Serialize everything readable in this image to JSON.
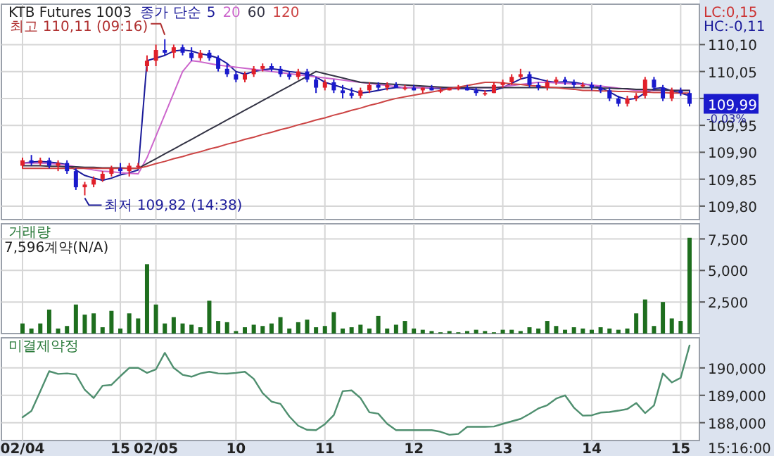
{
  "chart_data": [
    {
      "type": "candlestick",
      "title": "KTB Futures 1003",
      "legend_title": "종가 단순",
      "legend": "top left",
      "grid": true,
      "tick_labels": "y",
      "ylim": [
        109.775,
        110.175
      ],
      "yticks": [
        {
          "value": 109.8,
          "label": "109,80"
        },
        {
          "value": 109.85,
          "label": "109,85"
        },
        {
          "value": 109.9,
          "label": "109,90"
        },
        {
          "value": 109.95,
          "label": "109,95"
        },
        {
          "value": 110,
          "label": null
        },
        {
          "value": 110.05,
          "label": "110,05"
        },
        {
          "value": 110.1,
          "label": "110,10"
        }
      ],
      "categories": [
        null,
        null,
        null,
        null,
        null,
        null,
        null,
        null,
        null,
        null,
        null,
        null,
        null,
        null,
        null,
        null,
        null,
        null,
        null,
        null,
        null,
        null,
        null,
        null,
        null,
        null,
        null,
        null,
        null,
        null,
        null,
        null,
        null,
        null,
        null,
        null,
        null,
        null,
        null,
        null,
        null,
        null,
        null,
        null,
        null,
        null,
        null,
        null,
        null,
        null,
        null,
        null,
        null,
        null,
        null,
        null,
        null,
        null,
        null,
        null,
        null,
        null,
        null,
        null,
        null,
        null,
        null,
        null,
        null,
        null,
        null,
        null,
        null,
        null,
        null,
        null
      ],
      "ohlc": [
        [
          109.875,
          109.89,
          109.87,
          109.885
        ],
        [
          109.885,
          109.895,
          109.875,
          109.88
        ],
        [
          109.88,
          109.89,
          109.875,
          109.885
        ],
        [
          109.885,
          109.89,
          109.87,
          109.875
        ],
        [
          109.875,
          109.885,
          109.865,
          109.88
        ],
        [
          109.88,
          109.885,
          109.86,
          109.865
        ],
        [
          109.865,
          109.87,
          109.83,
          109.835
        ],
        [
          109.835,
          109.845,
          109.82,
          109.84
        ],
        [
          109.84,
          109.855,
          109.835,
          109.85
        ],
        [
          109.85,
          109.865,
          109.845,
          109.86
        ],
        [
          109.86,
          109.875,
          109.855,
          109.87
        ],
        [
          109.87,
          109.88,
          109.86,
          109.865
        ],
        [
          109.865,
          109.88,
          109.855,
          109.875
        ],
        [
          109.875,
          109.88,
          109.87,
          109.875
        ],
        [
          110.06,
          110.08,
          110.05,
          110.07
        ],
        [
          110.07,
          110.1,
          110.06,
          110.09
        ],
        [
          110.09,
          110.11,
          110.08,
          110.085
        ],
        [
          110.085,
          110.1,
          110.075,
          110.095
        ],
        [
          110.095,
          110.1,
          110.08,
          110.085
        ],
        [
          110.085,
          110.095,
          110.07,
          110.075
        ],
        [
          110.075,
          110.09,
          110.07,
          110.085
        ],
        [
          110.085,
          110.09,
          110.07,
          110.075
        ],
        [
          110.075,
          110.08,
          110.05,
          110.055
        ],
        [
          110.055,
          110.065,
          110.04,
          110.045
        ],
        [
          110.045,
          110.05,
          110.03,
          110.035
        ],
        [
          110.035,
          110.05,
          110.03,
          110.045
        ],
        [
          110.045,
          110.06,
          110.04,
          110.055
        ],
        [
          110.055,
          110.065,
          110.05,
          110.06
        ],
        [
          110.06,
          110.065,
          110.05,
          110.055
        ],
        [
          110.055,
          110.06,
          110.04,
          110.045
        ],
        [
          110.045,
          110.05,
          110.035,
          110.04
        ],
        [
          110.04,
          110.055,
          110.035,
          110.05
        ],
        [
          110.05,
          110.055,
          110.03,
          110.035
        ],
        [
          110.035,
          110.04,
          110.01,
          110.02
        ],
        [
          110.02,
          110.035,
          110.015,
          110.03
        ],
        [
          110.03,
          110.035,
          110.01,
          110.015
        ],
        [
          110.015,
          110.025,
          110.0,
          110.01
        ],
        [
          110.01,
          110.02,
          110.0,
          110.005
        ],
        [
          110.005,
          110.02,
          110.0,
          110.015
        ],
        [
          110.015,
          110.03,
          110.01,
          110.025
        ],
        [
          110.025,
          110.03,
          110.015,
          110.02
        ],
        [
          110.02,
          110.03,
          110.015,
          110.025
        ],
        [
          110.025,
          110.03,
          110.02,
          110.02
        ],
        [
          110.02,
          110.025,
          110.015,
          110.02
        ],
        [
          110.02,
          110.025,
          110.015,
          110.015
        ],
        [
          110.015,
          110.02,
          110.01,
          110.02
        ],
        [
          110.02,
          110.025,
          110.015,
          110.015
        ],
        [
          110.015,
          110.02,
          110.01,
          110.015
        ],
        [
          110.015,
          110.02,
          110.015,
          110.02
        ],
        [
          110.02,
          110.025,
          110.015,
          110.02
        ],
        [
          110.02,
          110.025,
          110.015,
          110.015
        ],
        [
          110.015,
          110.02,
          110.005,
          110.01
        ],
        [
          110.01,
          110.015,
          110.005,
          110.01
        ],
        [
          110.01,
          110.03,
          110.01,
          110.025
        ],
        [
          110.025,
          110.035,
          110.02,
          110.03
        ],
        [
          110.03,
          110.045,
          110.025,
          110.04
        ],
        [
          110.04,
          110.055,
          110.035,
          110.045
        ],
        [
          110.045,
          110.05,
          110.02,
          110.025
        ],
        [
          110.025,
          110.03,
          110.015,
          110.02
        ],
        [
          110.02,
          110.035,
          110.015,
          110.03
        ],
        [
          110.03,
          110.04,
          110.025,
          110.035
        ],
        [
          110.035,
          110.04,
          110.025,
          110.03
        ],
        [
          110.03,
          110.035,
          110.02,
          110.025
        ],
        [
          110.025,
          110.03,
          110.02,
          110.025
        ],
        [
          110.025,
          110.03,
          110.015,
          110.02
        ],
        [
          110.02,
          110.025,
          110.01,
          110.015
        ],
        [
          110.015,
          110.02,
          109.995,
          110.0
        ],
        [
          110.0,
          110.005,
          109.985,
          109.99
        ],
        [
          109.99,
          110.005,
          109.985,
          110.0
        ],
        [
          110.0,
          110.01,
          109.995,
          110.005
        ],
        [
          110.005,
          110.04,
          110.0,
          110.035
        ],
        [
          110.035,
          110.04,
          110.015,
          110.02
        ],
        [
          110.02,
          110.025,
          109.995,
          110.0
        ],
        [
          110.0,
          110.02,
          109.995,
          110.015
        ],
        [
          110.015,
          110.02,
          110.005,
          110.01
        ],
        [
          110.01,
          110.015,
          109.985,
          109.99
        ]
      ],
      "series": [
        {
          "name": "5",
          "type": "line",
          "color": "#1a1a99",
          "values": [
            109.88,
            109.882,
            109.883,
            109.882,
            109.88,
            109.877,
            109.867,
            109.857,
            109.852,
            109.848,
            109.852,
            109.858,
            109.862,
            109.867,
            110.07,
            110.075,
            110.08,
            110.088,
            110.09,
            110.088,
            110.083,
            110.08,
            110.075,
            110.065,
            110.05,
            110.045,
            110.05,
            110.053,
            110.055,
            110.053,
            110.05,
            110.048,
            110.045,
            110.04,
            110.03,
            110.025,
            110.02,
            110.015,
            110.01,
            110.012,
            110.015,
            110.018,
            110.02,
            110.02,
            110.02,
            110.02,
            110.019,
            110.018,
            110.018,
            110.018,
            110.018,
            110.016,
            110.014,
            110.015,
            110.02,
            110.028,
            110.036,
            110.04,
            110.036,
            110.032,
            110.03,
            110.031,
            110.03,
            110.027,
            110.025,
            110.02,
            110.012,
            110.003,
            109.998,
            110.0,
            110.01,
            110.018,
            110.02,
            110.014,
            110.01,
            110.005
          ]
        },
        {
          "name": "20",
          "type": "line",
          "color": "#cc66cc",
          "values": [
            109.88,
            109.88,
            109.88,
            109.879,
            109.878,
            109.876,
            109.873,
            109.87,
            109.867,
            109.865,
            109.864,
            109.862,
            109.861,
            109.86,
            109.89,
            109.93,
            109.97,
            110.01,
            110.05,
            110.07,
            110.068,
            110.065,
            110.062,
            110.06,
            110.058,
            110.056,
            110.054,
            110.052,
            110.05,
            110.048,
            110.046,
            110.044,
            110.042,
            110.04,
            110.038,
            110.036,
            110.034,
            110.032,
            110.03,
            110.028,
            110.026,
            110.024,
            110.022,
            110.02,
            110.02,
            110.02,
            110.02,
            110.02,
            110.02,
            110.02,
            110.02,
            110.02,
            110.02,
            110.02,
            110.022,
            110.024,
            110.026,
            110.028,
            110.03,
            110.03,
            110.029,
            110.028,
            110.027,
            110.026,
            110.025,
            110.023,
            110.021,
            110.019,
            110.017,
            110.015,
            110.015,
            110.015,
            110.015,
            110.015,
            110.015,
            110.015
          ]
        },
        {
          "name": "60",
          "type": "line",
          "color": "#333344",
          "values": [
            109.875,
            109.875,
            109.875,
            109.874,
            109.874,
            109.873,
            109.873,
            109.872,
            109.872,
            109.871,
            109.871,
            109.871,
            109.87,
            109.87,
            109.879,
            109.888,
            109.897,
            109.906,
            109.915,
            109.924,
            109.933,
            109.942,
            109.951,
            109.96,
            109.969,
            109.978,
            109.987,
            109.996,
            110.005,
            110.014,
            110.023,
            110.032,
            110.041,
            110.05,
            110.046,
            110.042,
            110.038,
            110.034,
            110.03,
            110.029,
            110.028,
            110.027,
            110.026,
            110.025,
            110.024,
            110.023,
            110.022,
            110.021,
            110.02,
            110.02,
            110.02,
            110.02,
            110.02,
            110.02,
            110.02,
            110.02,
            110.02,
            110.02,
            110.02,
            110.02,
            110.02,
            110.02,
            110.02,
            110.02,
            110.02,
            110.019,
            110.019,
            110.018,
            110.018,
            110.017,
            110.017,
            110.016,
            110.016,
            110.015,
            110.015,
            110.015
          ]
        },
        {
          "name": "120",
          "type": "line",
          "color": "#cc4444",
          "values": [
            109.87,
            109.87,
            109.87,
            109.87,
            109.87,
            109.87,
            109.87,
            109.87,
            109.87,
            109.87,
            109.87,
            109.87,
            109.87,
            109.87,
            109.874,
            109.879,
            109.883,
            109.888,
            109.892,
            109.897,
            109.901,
            109.906,
            109.91,
            109.915,
            109.919,
            109.924,
            109.928,
            109.933,
            109.937,
            109.942,
            109.946,
            109.951,
            109.955,
            109.96,
            109.964,
            109.969,
            109.973,
            109.978,
            109.982,
            109.987,
            109.991,
            109.996,
            110.0,
            110.003,
            110.006,
            110.009,
            110.012,
            110.015,
            110.018,
            110.021,
            110.024,
            110.027,
            110.03,
            110.03,
            110.029,
            110.027,
            110.026,
            110.024,
            110.023,
            110.021,
            110.02,
            110.018,
            110.017,
            110.015,
            110.015,
            110.014,
            110.014,
            110.013,
            110.013,
            110.012,
            110.012,
            110.011,
            110.011,
            110.01,
            110.01,
            110.01
          ]
        }
      ],
      "annotations": [
        "최고 110,11 (09:16)",
        "최저 109,82 (14:38)",
        "LC:0,15",
        "HC:-0,11",
        "109,99",
        "-0,03%"
      ]
    },
    {
      "type": "bar",
      "title": "거래량",
      "subtitle": "7,596계약(N/A)",
      "color": "#1e6e1e",
      "grid": true,
      "tick_labels": "y",
      "ylim": [
        0,
        8700
      ],
      "yticks": [
        {
          "value": 2500,
          "label": "2,500"
        },
        {
          "value": 5000,
          "label": "5,000"
        },
        {
          "value": 7500,
          "label": "7,500"
        }
      ],
      "categories": [
        null,
        null,
        null,
        null,
        null,
        null,
        null,
        null,
        null,
        null,
        null,
        null,
        null,
        null,
        null,
        null,
        null,
        null,
        null,
        null,
        null,
        null,
        null,
        null,
        null,
        null,
        null,
        null,
        null,
        null,
        null,
        null,
        null,
        null,
        null,
        null,
        null,
        null,
        null,
        null,
        null,
        null,
        null,
        null,
        null,
        null,
        null,
        null,
        null,
        null,
        null,
        null,
        null,
        null,
        null,
        null,
        null,
        null,
        null,
        null,
        null,
        null,
        null,
        null,
        null,
        null,
        null,
        null,
        null,
        null,
        null,
        null,
        null,
        null,
        null,
        null
      ],
      "values": [
        800,
        400,
        800,
        1900,
        400,
        600,
        2300,
        1500,
        1600,
        500,
        1800,
        400,
        1600,
        1200,
        5500,
        2300,
        800,
        1300,
        800,
        700,
        500,
        2600,
        1000,
        900,
        200,
        500,
        700,
        600,
        800,
        1300,
        400,
        900,
        1100,
        500,
        600,
        1700,
        400,
        500,
        700,
        400,
        1400,
        400,
        700,
        1000,
        400,
        300,
        200,
        100,
        200,
        100,
        200,
        300,
        200,
        100,
        300,
        300,
        200,
        500,
        400,
        1000,
        600,
        300,
        500,
        400,
        300,
        500,
        400,
        300,
        400,
        1600,
        2700,
        600,
        2500,
        1200,
        1000,
        7596
      ]
    },
    {
      "type": "line",
      "title": "미결제약정",
      "color": "#4f8f6f",
      "grid": true,
      "annotations": [
        "15:16:00"
      ],
      "ylim": [
        187350,
        191100
      ],
      "yticks": [
        {
          "value": 188000,
          "label": "188,000"
        },
        {
          "value": 189000,
          "label": "189,000"
        },
        {
          "value": 190000,
          "label": "190,000"
        }
      ],
      "categories": [
        "02/04",
        null,
        null,
        null,
        null,
        null,
        null,
        null,
        null,
        null,
        null,
        "15",
        null,
        null,
        null,
        "02/05",
        null,
        null,
        null,
        null,
        null,
        null,
        null,
        null,
        "10",
        null,
        null,
        null,
        null,
        null,
        null,
        null,
        null,
        null,
        "11",
        null,
        null,
        null,
        null,
        null,
        null,
        null,
        null,
        null,
        "12",
        null,
        null,
        null,
        null,
        null,
        null,
        null,
        null,
        null,
        "13",
        null,
        null,
        null,
        null,
        null,
        null,
        null,
        null,
        null,
        "14",
        null,
        null,
        null,
        null,
        null,
        null,
        null,
        null,
        null,
        "15",
        null
      ],
      "values": [
        188200,
        188430,
        189150,
        189880,
        189780,
        189800,
        189760,
        189200,
        188900,
        189350,
        189380,
        189700,
        190000,
        190000,
        189820,
        189950,
        190550,
        190000,
        189750,
        189680,
        189800,
        189860,
        189800,
        189790,
        189820,
        189860,
        189600,
        189080,
        188770,
        188690,
        188230,
        187890,
        187740,
        187730,
        187950,
        188280,
        189150,
        189180,
        188900,
        188380,
        188330,
        187960,
        187730,
        187730,
        187730,
        187730,
        187730,
        187670,
        187560,
        187590,
        187850,
        187850,
        187850,
        187860,
        187960,
        188050,
        188140,
        188320,
        188520,
        188640,
        188880,
        189000,
        188550,
        188260,
        188270,
        188370,
        188390,
        188440,
        188500,
        188720,
        188350,
        188630,
        189800,
        189470,
        189640,
        190820
      ]
    }
  ]
}
